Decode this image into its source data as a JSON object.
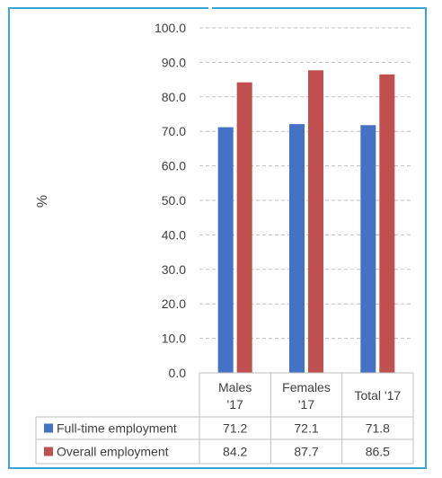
{
  "chart_data": {
    "type": "bar",
    "categories": [
      "Males '17",
      "Females '17",
      "Total '17"
    ],
    "category_lines": [
      [
        "Males",
        "'17"
      ],
      [
        "Females",
        "'17"
      ],
      [
        "Total '17"
      ]
    ],
    "series": [
      {
        "name": "Full-time employment",
        "values": [
          71.2,
          72.1,
          71.8
        ],
        "color": "#4472c4"
      },
      {
        "name": "Overall employment",
        "values": [
          84.2,
          87.7,
          86.5
        ],
        "color": "#c0504d"
      }
    ],
    "ylabel": "%",
    "ylim": [
      0,
      100
    ],
    "yticks": [
      "0.0",
      "10.0",
      "20.0",
      "30.0",
      "40.0",
      "50.0",
      "60.0",
      "70.0",
      "80.0",
      "90.0",
      "100.0"
    ],
    "data_table": [
      [
        "71.2",
        "72.1",
        "71.8"
      ],
      [
        "84.2",
        "87.7",
        "86.5"
      ]
    ],
    "grid": true,
    "legend": "data-table-left"
  }
}
